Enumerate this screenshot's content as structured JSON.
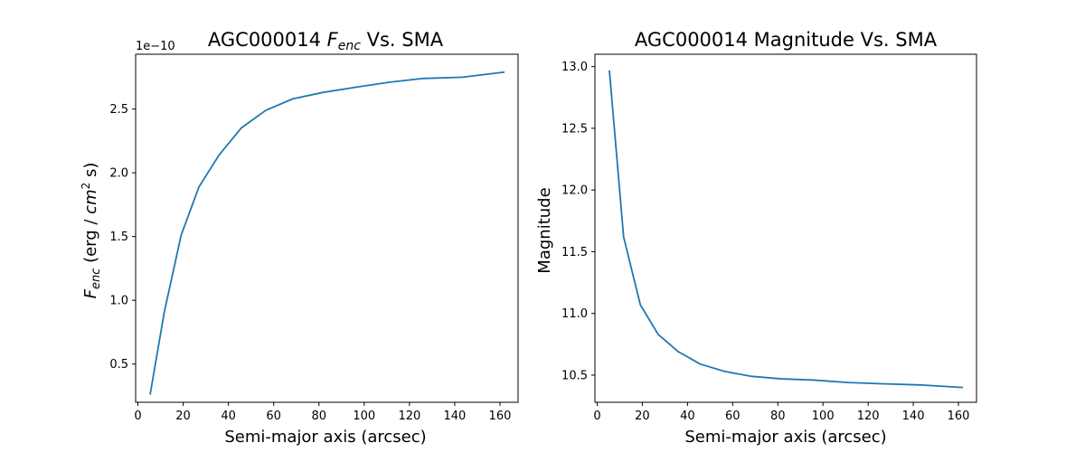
{
  "chart_data": [
    {
      "type": "line",
      "title": "AGC000014 F_enc Vs. SMA",
      "title_prefix": "AGC000014 ",
      "title_sym": "F",
      "title_sub": "enc",
      "title_suffix": " Vs. SMA",
      "xlabel": "Semi-major axis (arcsec)",
      "ylabel": "F_enc (erg / cm^2 s)",
      "ylabel_sym": "F",
      "ylabel_sub": "enc",
      "ylabel_mid": " (erg / ",
      "ylabel_unit": "cm",
      "ylabel_pow": "2",
      "ylabel_end": " s)",
      "y_offset_text": "1e−10",
      "xlim": [
        -1,
        168
      ],
      "ylim": [
        0.2,
        2.93
      ],
      "xticks": [
        0,
        20,
        40,
        60,
        80,
        100,
        120,
        140,
        160
      ],
      "yticks": [
        0.5,
        1.0,
        1.5,
        2.0,
        2.5
      ],
      "ytick_labels": [
        "0.5",
        "1.0",
        "1.5",
        "2.0",
        "2.5"
      ],
      "color": "#1f77b4",
      "x": [
        5.4,
        11.7,
        19.1,
        27.0,
        35.9,
        45.6,
        56.5,
        68.4,
        81.6,
        95.9,
        111.0,
        126.0,
        143.5,
        162.0
      ],
      "y": [
        0.26,
        0.91,
        1.51,
        1.89,
        2.14,
        2.35,
        2.49,
        2.58,
        2.63,
        2.67,
        2.71,
        2.74,
        2.75,
        2.79
      ]
    },
    {
      "type": "line",
      "title": "AGC000014 Magnitude Vs. SMA",
      "xlabel": "Semi-major axis (arcsec)",
      "ylabel": "Magnitude",
      "xlim": [
        -1,
        168
      ],
      "ylim": [
        10.28,
        13.1
      ],
      "xticks": [
        0,
        20,
        40,
        60,
        80,
        100,
        120,
        140,
        160
      ],
      "yticks": [
        10.5,
        11.0,
        11.5,
        12.0,
        12.5,
        13.0
      ],
      "ytick_labels": [
        "10.5",
        "11.0",
        "11.5",
        "12.0",
        "12.5",
        "13.0"
      ],
      "color": "#1f77b4",
      "x": [
        5.4,
        11.7,
        19.1,
        27.0,
        35.9,
        45.6,
        56.5,
        68.4,
        81.6,
        95.9,
        111.0,
        126.0,
        143.5,
        162.0
      ],
      "y": [
        12.97,
        11.62,
        11.07,
        10.83,
        10.69,
        10.59,
        10.53,
        10.49,
        10.47,
        10.46,
        10.44,
        10.43,
        10.42,
        10.4
      ]
    }
  ]
}
